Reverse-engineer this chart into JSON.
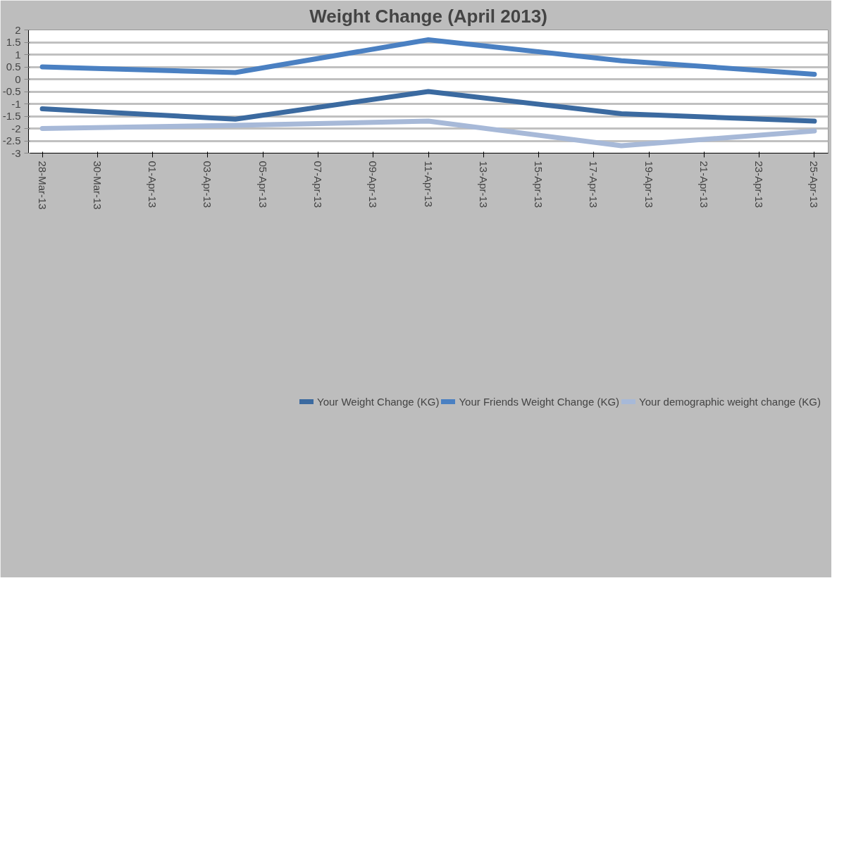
{
  "chart_data": {
    "type": "line",
    "title": "Weight Change (April 2013)",
    "x": [
      "2013-03-28",
      "2013-04-04",
      "2013-04-11",
      "2013-04-18",
      "2013-04-25"
    ],
    "series": [
      {
        "name": "Your Weight Change (KG)",
        "color": "#3b6aa0",
        "values": [
          -1.2,
          -1.62,
          -0.5,
          -1.4,
          -1.7
        ]
      },
      {
        "name": "Your Friends Weight Change (KG)",
        "color": "#4a80c2",
        "values": [
          0.5,
          0.27,
          1.6,
          0.75,
          0.2
        ]
      },
      {
        "name": "Your demographic weight change (KG)",
        "color": "#a7b9d8",
        "values": [
          -2.0,
          -1.87,
          -1.7,
          -2.7,
          -2.1
        ]
      }
    ],
    "xlim": [
      "2013-03-27T12:00",
      "2013-04-25T12:00"
    ],
    "xticks": [
      {
        "value": "2013-03-28",
        "label": "28-Mar-13"
      },
      {
        "value": "2013-03-30",
        "label": "30-Mar-13"
      },
      {
        "value": "2013-04-01",
        "label": "01-Apr-13"
      },
      {
        "value": "2013-04-03",
        "label": "03-Apr-13"
      },
      {
        "value": "2013-04-05",
        "label": "05-Apr-13"
      },
      {
        "value": "2013-04-07",
        "label": "07-Apr-13"
      },
      {
        "value": "2013-04-09",
        "label": "09-Apr-13"
      },
      {
        "value": "2013-04-11",
        "label": "11-Apr-13"
      },
      {
        "value": "2013-04-13",
        "label": "13-Apr-13"
      },
      {
        "value": "2013-04-15",
        "label": "15-Apr-13"
      },
      {
        "value": "2013-04-17",
        "label": "17-Apr-13"
      },
      {
        "value": "2013-04-19",
        "label": "19-Apr-13"
      },
      {
        "value": "2013-04-21",
        "label": "21-Apr-13"
      },
      {
        "value": "2013-04-23",
        "label": "23-Apr-13"
      },
      {
        "value": "2013-04-25",
        "label": "25-Apr-13"
      }
    ],
    "ylim": [
      -3,
      2
    ],
    "yticks": [
      -3,
      -2.5,
      -2,
      -1.5,
      -1,
      -0.5,
      0,
      0.5,
      1,
      1.5,
      2
    ],
    "grid": "y",
    "legend": "bottom",
    "marker": "none",
    "line_style": "solid"
  }
}
